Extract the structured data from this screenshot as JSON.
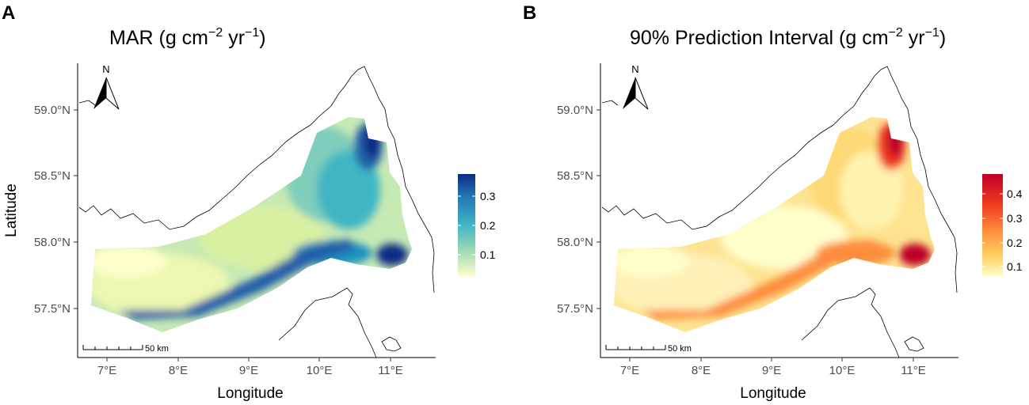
{
  "panels": [
    {
      "letter": "A",
      "title_main": "MAR (g cm",
      "title_exp1": "−2",
      "title_mid": " yr",
      "title_exp2": "−1",
      "title_end": ")",
      "xlabel": "Longitude",
      "ylabel": "Latitude",
      "x_ticks": [
        "7°E",
        "8°E",
        "9°E",
        "10°E",
        "11°E"
      ],
      "y_ticks": [
        "59.0°N",
        "58.5°N",
        "58.0°N",
        "57.5°N"
      ],
      "north_label": "N",
      "scalebar_label": "50 km",
      "legend": {
        "ticks": [
          "0.3",
          "0.2",
          "0.1"
        ],
        "colors": [
          "#0d3b8e",
          "#2177b4",
          "#41b6c4",
          "#a1dab4",
          "#ffffcc"
        ]
      },
      "palette": [
        "#ffffcc",
        "#c7e9b4",
        "#7fcdbb",
        "#41b6c4",
        "#1d91c0",
        "#225ea8",
        "#0c2c84"
      ]
    },
    {
      "letter": "B",
      "title_main": "90% Prediction Interval (g cm",
      "title_exp1": "−2",
      "title_mid": " yr",
      "title_exp2": "−1",
      "title_end": ")",
      "xlabel": "Longitude",
      "ylabel": "",
      "x_ticks": [
        "7°E",
        "8°E",
        "9°E",
        "10°E",
        "11°E"
      ],
      "y_ticks": [
        "59.0°N",
        "58.5°N",
        "58.0°N",
        "57.5°N"
      ],
      "north_label": "N",
      "scalebar_label": "50 km",
      "legend": {
        "ticks": [
          "0.4",
          "0.3",
          "0.2",
          "0.1"
        ],
        "colors": [
          "#bd0026",
          "#f03b20",
          "#fd8d3c",
          "#fecc5c",
          "#ffffcc"
        ]
      },
      "palette": [
        "#ffffcc",
        "#ffeda0",
        "#fed976",
        "#feb24c",
        "#fd8d3c",
        "#f03b20",
        "#bd0026"
      ]
    }
  ]
}
